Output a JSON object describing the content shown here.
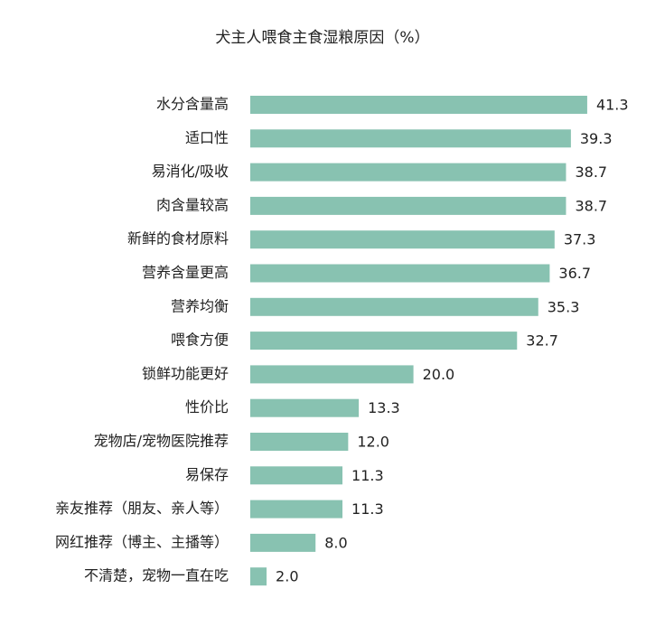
{
  "chart_data": {
    "type": "bar",
    "orientation": "horizontal",
    "title": "犬主人喂食主食湿粮原因（%）",
    "categories": [
      "水分含量高",
      "适口性",
      "易消化/吸收",
      "肉含量较高",
      "新鲜的食材原料",
      "营养含量更高",
      "营养均衡",
      "喂食方便",
      "锁鲜功能更好",
      "性价比",
      "宠物店/宠物医院推荐",
      "易保存",
      "亲友推荐（朋友、亲人等）",
      "网红推荐（博主、主播等）",
      "不清楚，宠物一直在吃"
    ],
    "values": [
      41.3,
      39.3,
      38.7,
      38.7,
      37.3,
      36.7,
      35.3,
      32.7,
      20.0,
      13.3,
      12.0,
      11.3,
      11.3,
      8.0,
      2.0
    ],
    "value_labels": [
      "41.3",
      "39.3",
      "38.7",
      "38.7",
      "37.3",
      "36.7",
      "35.3",
      "32.7",
      "20.0",
      "13.3",
      "12.0",
      "11.3",
      "11.3",
      "8.0",
      "2.0"
    ],
    "color": "#88c2b1"
  }
}
